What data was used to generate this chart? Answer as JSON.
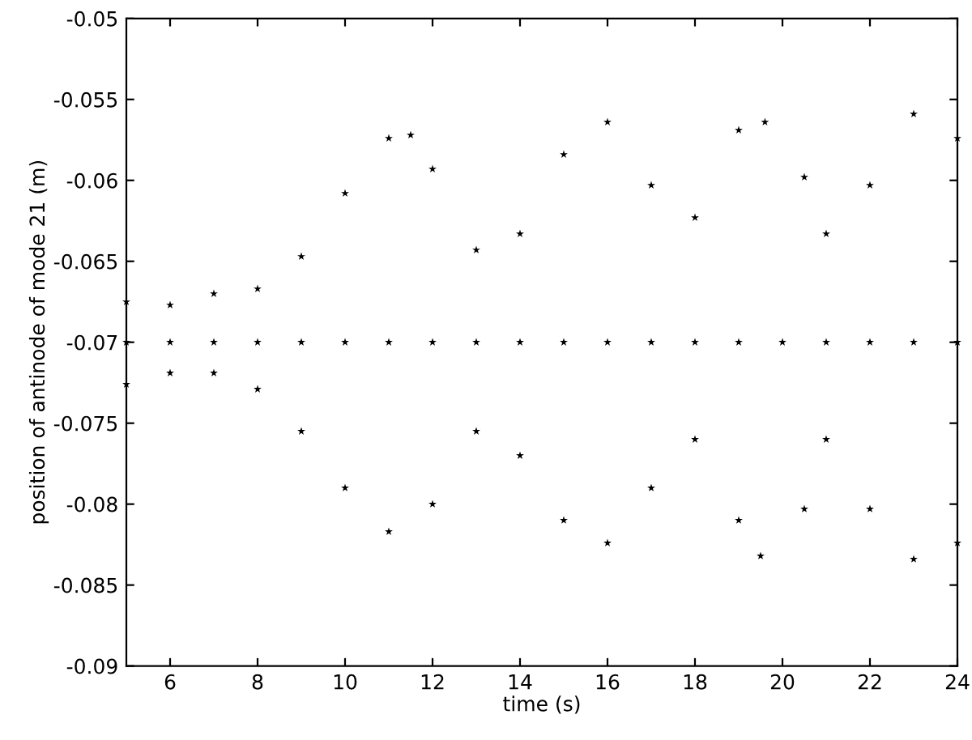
{
  "chart_data": {
    "type": "scatter",
    "xlabel": "time (s)",
    "ylabel": "position of antinode of mode 21 (m)",
    "xlim": [
      5,
      24
    ],
    "ylim": [
      -0.09,
      -0.05
    ],
    "xticks": [
      6,
      8,
      10,
      12,
      14,
      16,
      18,
      20,
      22,
      24
    ],
    "yticks": [
      -0.09,
      -0.085,
      -0.08,
      -0.075,
      -0.07,
      -0.065,
      -0.06,
      -0.055,
      -0.05
    ],
    "marker": "star",
    "grid": false,
    "series": [
      {
        "color": "#000000",
        "x": [
          5,
          6,
          7,
          8,
          9,
          10,
          11,
          11.5,
          12,
          13,
          14,
          15,
          16,
          17,
          18,
          19,
          19.6,
          20.5,
          21,
          22,
          23,
          24
        ],
        "values": [
          -0.0675,
          -0.0677,
          -0.067,
          -0.0667,
          -0.0647,
          -0.0608,
          -0.0574,
          -0.0572,
          -0.0593,
          -0.0643,
          -0.0633,
          -0.0584,
          -0.0564,
          -0.0603,
          -0.0623,
          -0.0569,
          -0.0564,
          -0.0598,
          -0.0633,
          -0.0603,
          -0.0559,
          -0.0574
        ]
      },
      {
        "color": "#000000",
        "x": [
          5,
          6,
          7,
          8,
          9,
          10,
          11,
          12,
          13,
          14,
          15,
          16,
          17,
          18,
          19,
          20,
          21,
          22,
          23,
          24
        ],
        "values": [
          -0.07,
          -0.07,
          -0.07,
          -0.07,
          -0.07,
          -0.07,
          -0.07,
          -0.07,
          -0.07,
          -0.07,
          -0.07,
          -0.07,
          -0.07,
          -0.07,
          -0.07,
          -0.07,
          -0.07,
          -0.07,
          -0.07,
          -0.07
        ]
      },
      {
        "color": "#000000",
        "x": [
          5,
          6,
          7,
          8,
          9,
          10,
          11,
          12,
          13,
          14,
          15,
          16,
          17,
          18,
          19,
          19.5,
          20.5,
          21,
          22,
          23,
          24
        ],
        "values": [
          -0.0726,
          -0.0719,
          -0.0719,
          -0.0729,
          -0.0755,
          -0.079,
          -0.0817,
          -0.08,
          -0.0755,
          -0.077,
          -0.081,
          -0.0824,
          -0.079,
          -0.076,
          -0.081,
          -0.0832,
          -0.0803,
          -0.076,
          -0.0803,
          -0.0834,
          -0.0824
        ]
      }
    ]
  }
}
